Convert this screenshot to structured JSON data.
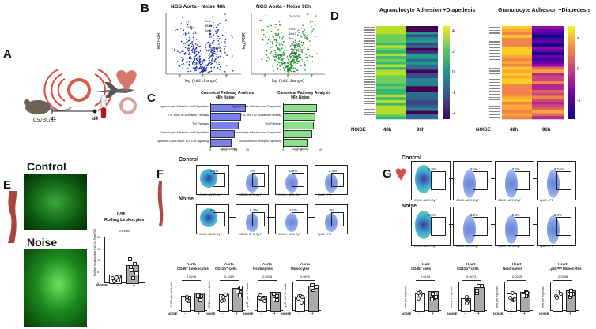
{
  "panels": {
    "A": "A",
    "B": "B",
    "C": "C",
    "D": "D",
    "E": "E",
    "F": "F",
    "G": "G"
  },
  "panelA": {
    "timer": "24h",
    "strain": "C57BL/6J",
    "d1": "d1",
    "d4": "d4"
  },
  "panelB": {
    "left": {
      "title": "NGS Aorta - Noise 48h",
      "xlabel": "log (fold change)",
      "ylabel": "-log(FDR)",
      "ticks_x": [
        "-5",
        "0",
        "5"
      ],
      "genes": [
        "Fos1",
        "Tnxf4h",
        "Nft2l1",
        "Fosl2",
        "Atf",
        "Cyp42",
        "Poldr/Nos"
      ]
    },
    "right": {
      "title": "NGS Aorta - Noise 96h",
      "xlabel": "log (fold change)",
      "ylabel": "-log(FDR)",
      "ticks_x": [
        "-5",
        "0",
        "5"
      ],
      "genes": [
        "Tm2025",
        "Fos1",
        "Nos7",
        "Fos",
        "Cyp42",
        "Poldr/Nos",
        "Elovl"
      ]
    }
  },
  "panelC": {
    "left": {
      "title": "Canonical Pathway Analysis",
      "subtitle": "48h Noise",
      "xlabel": "-log(p-value)",
      "pathways": [
        "Agranulocyte Adhesion and Diapedesis",
        "Th1 and Th2 Activation Pathway",
        "Th2 Pathway",
        "Granulocyte Adhesion and Diapedesis",
        "Systemic Lupus Eryth. in B Cell Signaling"
      ],
      "values": [
        14,
        12,
        11,
        9.5,
        8
      ],
      "ticks": [
        "0",
        "5",
        "10",
        "15"
      ]
    },
    "right": {
      "title": "Canonical Pathway Analysis",
      "subtitle": "96h Noise",
      "xlabel": "-log(p-value)",
      "pathways": [
        "Agranulocyte Adhesion and Diapedesis",
        "Th1 and Th2 Activation Pathway",
        "Th2 Pathway",
        "Granulocyte Adhesion and Diapedesis",
        "Glucocorticoid Receptor Signaling"
      ],
      "values": [
        9,
        8.5,
        8,
        7.5,
        6.5
      ],
      "ticks": [
        "0",
        "5",
        "10"
      ]
    }
  },
  "panelD": {
    "left": {
      "title": "Agranulocyte Adhesion +Diapedesis",
      "xlabel": "NOISE",
      "cols": [
        "48h",
        "96h"
      ],
      "scale": [
        "4",
        "2",
        "0",
        "-2",
        "-4"
      ]
    },
    "right": {
      "title": "Granulocyte Adhesion +Diapedesis",
      "xlabel": "NOISE",
      "cols": [
        "48h",
        "96h"
      ],
      "scale": [
        "2",
        "0",
        "-2"
      ]
    }
  },
  "panelE": {
    "control": "Control",
    "noise": "Noise",
    "chart_title": "IVM",
    "chart_subtitle": "Rolling Leukocytes",
    "pvalue": "0.0496",
    "ylabel": "Rolling leukocytes [n/0.015mm²/2]",
    "xlabel": "NOISE",
    "groups": [
      "-",
      "+"
    ],
    "yticks": [
      "20",
      "15",
      "10",
      "5",
      "0"
    ]
  },
  "panelF": {
    "control": "Control",
    "noise": "Noise",
    "ctrl_pcts": [
      "4.3%",
      "4%",
      "0.9%",
      "2.4%"
    ],
    "noise_pcts": [
      "8%",
      "5.2%",
      "1.1%",
      "3%"
    ],
    "axes": [
      "CD45 - APC-Cy7",
      "CD45 - APC-Cy7",
      "CD45 - APC-Cy7",
      "Ly6C - PB"
    ],
    "yaxes": [
      "FSC-A",
      "CD11b - PerCP-Cy5.5",
      "Ly6G - PE",
      "F4/80 - APC"
    ],
    "charts": [
      {
        "title": "Aorta",
        "subtitle": "CD45⁺ Leukocytes",
        "p": "0.0245",
        "ylabel": "CD45+ per cm Aorta"
      },
      {
        "title": "Aorta",
        "subtitle": "CD11b⁺ cells",
        "p": "0.1889",
        "ylabel": "CD11b+ per cm Aorta"
      },
      {
        "title": "Aorta",
        "subtitle": "Neutrophils",
        "p": "0.0336",
        "ylabel": "Ly6G+ per cm Aorta"
      },
      {
        "title": "Aorta",
        "subtitle": "Monocytes",
        "p": "0.0870",
        "ylabel": "Ly6C+ per cm Aorta"
      }
    ],
    "xlabel": "NOISE",
    "groups": [
      "-",
      "+"
    ]
  },
  "panelG": {
    "control": "Control",
    "noise": "Noise",
    "ctrl_pcts": [
      "6.9%",
      "2.5%",
      "0.4%",
      "0.24%"
    ],
    "noise_pcts": [
      "7.5%",
      "3.2%",
      "0.3%",
      "3.4%"
    ],
    "axes": [
      "CD45 - APC-Cy7",
      "CD45 - APC-Cy7",
      "CD45 - APC-Cy7",
      "Ly6C - PB"
    ],
    "charts": [
      {
        "title": "Heart",
        "subtitle": "CD45⁺ cells",
        "p": "0.0180",
        "ylabel": "cells per mg heart"
      },
      {
        "title": "Heart",
        "subtitle": "CD11b⁺ cells",
        "p": "0.0473",
        "ylabel": "cells per mg heart"
      },
      {
        "title": "Heart",
        "subtitle": "Neutrophils",
        "p": "0.0265",
        "ylabel": "cells per mg heart"
      },
      {
        "title": "Heart",
        "subtitle": "Ly6Cʰⁱᵍʰ Monocytes",
        "p": "0.0398",
        "ylabel": "cells per mg heart"
      }
    ],
    "xlabel": "NOISE",
    "groups": [
      "-",
      "+"
    ]
  }
}
